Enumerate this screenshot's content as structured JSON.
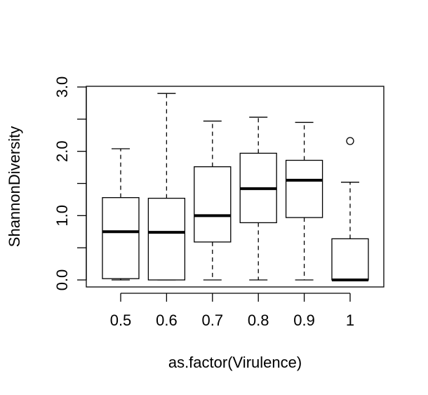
{
  "chart_data": {
    "type": "box",
    "title": "",
    "xlabel": "as.factor(Virulence)",
    "ylabel": "ShannonDiversity",
    "ylim": [
      -0.1,
      3.0
    ],
    "yticks": [
      {
        "value": 0.0,
        "label": "0.0"
      },
      {
        "value": 0.5,
        "label": ""
      },
      {
        "value": 1.0,
        "label": "1.0"
      },
      {
        "value": 1.5,
        "label": ""
      },
      {
        "value": 2.0,
        "label": "2.0"
      },
      {
        "value": 2.5,
        "label": ""
      },
      {
        "value": 3.0,
        "label": "3.0"
      }
    ],
    "categories": [
      "0.5",
      "0.6",
      "0.7",
      "0.8",
      "0.9",
      "1"
    ],
    "boxes": [
      {
        "min": 0.0,
        "q1": 0.02,
        "median": 0.75,
        "q3": 1.28,
        "max": 2.04,
        "outliers": []
      },
      {
        "min": 0.0,
        "q1": 0.0,
        "median": 0.74,
        "q3": 1.27,
        "max": 2.9,
        "outliers": []
      },
      {
        "min": 0.0,
        "q1": 0.59,
        "median": 1.0,
        "q3": 1.76,
        "max": 2.47,
        "outliers": []
      },
      {
        "min": 0.0,
        "q1": 0.89,
        "median": 1.42,
        "q3": 1.97,
        "max": 2.53,
        "outliers": []
      },
      {
        "min": 0.0,
        "q1": 0.97,
        "median": 1.55,
        "q3": 1.86,
        "max": 2.45,
        "outliers": []
      },
      {
        "min": 0.0,
        "q1": 0.0,
        "median": 0.0,
        "q3": 0.64,
        "max": 1.52,
        "outliers": [
          2.16
        ]
      }
    ],
    "grid": false,
    "legend": "none"
  }
}
